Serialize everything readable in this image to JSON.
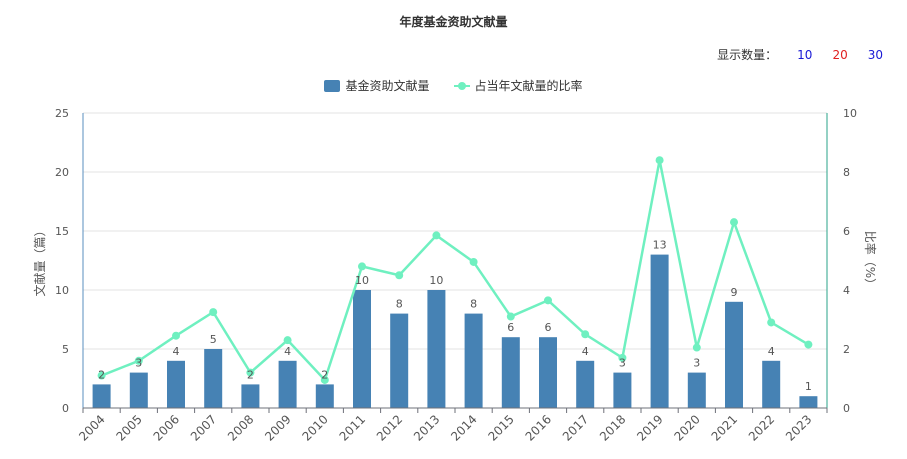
{
  "title": "年度基金资助文献量",
  "count_selector": {
    "label": "显示数量：",
    "options": [
      {
        "label": "10",
        "color": "#1a1ad6"
      },
      {
        "label": "20",
        "color": "#e02020"
      },
      {
        "label": "30",
        "color": "#1a1ad6"
      }
    ]
  },
  "colors": {
    "bar": "#4682b4",
    "line": "#6ff0c0",
    "axis_left": "#5a8fbf",
    "axis_right": "#2aa38a",
    "grid": "#e3e3e3"
  },
  "chart_data": {
    "type": "bar",
    "categories": [
      "2004",
      "2005",
      "2006",
      "2007",
      "2008",
      "2009",
      "2010",
      "2011",
      "2012",
      "2013",
      "2014",
      "2015",
      "2016",
      "2017",
      "2018",
      "2019",
      "2020",
      "2021",
      "2022",
      "2023"
    ],
    "series": [
      {
        "name": "基金资助文献量",
        "type": "bar",
        "axis": "left",
        "values": [
          2,
          3,
          4,
          5,
          2,
          4,
          2,
          10,
          8,
          10,
          8,
          6,
          6,
          4,
          3,
          13,
          3,
          9,
          4,
          1
        ]
      },
      {
        "name": "占当年文献量的比率",
        "type": "line",
        "axis": "right",
        "values": [
          1.1,
          1.6,
          2.45,
          3.25,
          1.2,
          2.3,
          0.95,
          4.8,
          4.5,
          5.85,
          4.95,
          3.1,
          3.65,
          2.5,
          1.7,
          8.4,
          2.05,
          6.3,
          2.9,
          2.15
        ]
      }
    ],
    "ylabel_left": "文献量（篇）",
    "ylabel_right": "比率（%）",
    "ylim_left": [
      0,
      25
    ],
    "ylim_right": [
      0,
      10
    ],
    "yticks_left": [
      "0",
      "5",
      "10",
      "15",
      "20",
      "25"
    ],
    "yticks_right": [
      "0",
      "2",
      "4",
      "6",
      "8",
      "10"
    ],
    "grid": true,
    "legend_position": "top"
  }
}
